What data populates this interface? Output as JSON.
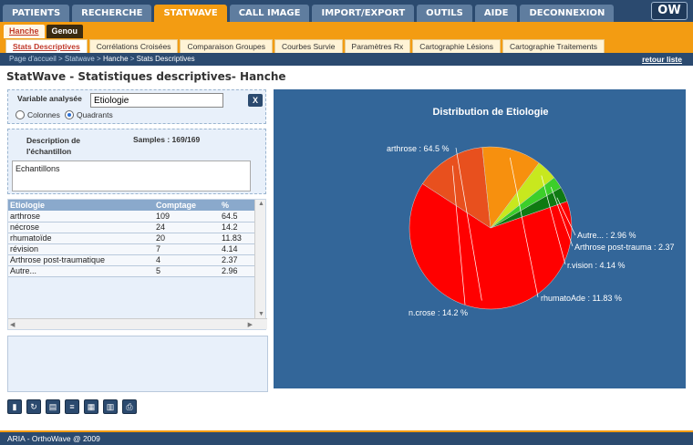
{
  "topnav": [
    "PATIENTS",
    "RECHERCHE",
    "STATWAVE",
    "CALL IMAGE",
    "IMPORT/EXPORT",
    "OUTILS",
    "AIDE",
    "DECONNEXION"
  ],
  "topnav_active": 2,
  "logo": "OW",
  "subnav": [
    "Hanche",
    "Genou"
  ],
  "thirdnav": [
    "Stats Descriptives",
    "Corrélations Croisées",
    "Comparaison Groupes",
    "Courbes Survie",
    "Paramètres Rx",
    "Cartographie Lésions",
    "Cartographie Traitements"
  ],
  "breadcrumb": {
    "c1": "Page d'accueil",
    "sep": " > ",
    "c2": "Statwave",
    "c3": "Hanche",
    "c4": "Stats Descriptives"
  },
  "retour": "retour liste",
  "page_title": "StatWave - Statistiques descriptives- Hanche",
  "variable": {
    "label": "Variable analysée",
    "value": "Etiologie",
    "clear": "X"
  },
  "radio": {
    "colonnes": "Colonnes",
    "quadrants": "Quadrants",
    "selected": "quadrants"
  },
  "description": {
    "label": "Description de l'échantillon",
    "samples": "Samples : 169/169",
    "textarea": "Echantillons"
  },
  "table": {
    "headers": [
      "Etiologie",
      "Comptage",
      "%"
    ],
    "rows": [
      [
        "arthrose",
        "109",
        "64.5"
      ],
      [
        "nécrose",
        "24",
        "14.2"
      ],
      [
        "rhumatoïde",
        "20",
        "11.83"
      ],
      [
        "révision",
        "7",
        "4.14"
      ],
      [
        "Arthrose post-traumatique",
        "4",
        "2.37"
      ],
      [
        "Autre...",
        "5",
        "2.96"
      ]
    ]
  },
  "toolbar_icons": [
    "bar-chart-icon",
    "refresh-icon",
    "table-export-icon",
    "notes-icon",
    "grid-icon",
    "histogram-icon",
    "print-icon"
  ],
  "footer": "ARIA - OrthoWave @ 2009",
  "colors": {
    "nav": "#2b4a6f",
    "accent": "#f39c12",
    "chart_bg": "#336699"
  },
  "chart_data": {
    "type": "pie",
    "title": "Distribution de Etiologie",
    "slices": [
      {
        "label": "arthrose : 64.5 %",
        "value": 64.5,
        "color": "#ff0000"
      },
      {
        "label": "n.crose : 14.2 %",
        "value": 14.2,
        "color": "#e8501e"
      },
      {
        "label": "rhumatoAde : 11.83 %",
        "value": 11.83,
        "color": "#f7900e"
      },
      {
        "label": "r.vision : 4.14 %",
        "value": 4.14,
        "color": "#c8e81e"
      },
      {
        "label": "Arthrose post-trauma : 2.37",
        "value": 2.37,
        "color": "#3ccf2a"
      },
      {
        "label": "Autre... : 2.96 %",
        "value": 2.96,
        "color": "#0f7a12"
      }
    ]
  }
}
